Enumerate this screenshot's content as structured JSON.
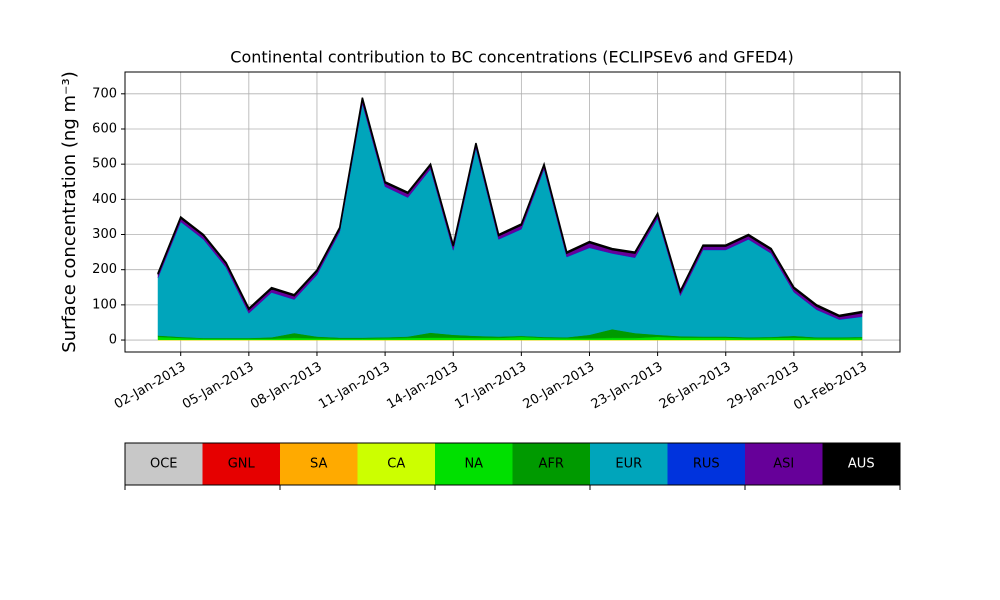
{
  "chart_data": {
    "type": "stacked_area",
    "title": "Continental contribution to BC concentrations (ECLIPSEv6 and GFED4)",
    "y_label": "Surface concentration (ng m⁻³)",
    "x": [
      "01-Jan-2013",
      "02-Jan-2013",
      "03-Jan-2013",
      "04-Jan-2013",
      "05-Jan-2013",
      "06-Jan-2013",
      "07-Jan-2013",
      "08-Jan-2013",
      "09-Jan-2013",
      "10-Jan-2013",
      "11-Jan-2013",
      "12-Jan-2013",
      "13-Jan-2013",
      "14-Jan-2013",
      "15-Jan-2013",
      "16-Jan-2013",
      "17-Jan-2013",
      "18-Jan-2013",
      "19-Jan-2013",
      "20-Jan-2013",
      "21-Jan-2013",
      "22-Jan-2013",
      "23-Jan-2013",
      "24-Jan-2013",
      "25-Jan-2013",
      "26-Jan-2013",
      "27-Jan-2013",
      "28-Jan-2013",
      "29-Jan-2013",
      "30-Jan-2013",
      "31-Jan-2013",
      "01-Feb-2013"
    ],
    "xticks": [
      "02-Jan-2013",
      "05-Jan-2013",
      "08-Jan-2013",
      "11-Jan-2013",
      "14-Jan-2013",
      "17-Jan-2013",
      "20-Jan-2013",
      "23-Jan-2013",
      "26-Jan-2013",
      "29-Jan-2013",
      "01-Feb-2013"
    ],
    "ylim": [
      -34,
      762
    ],
    "yticks": [
      0,
      100,
      200,
      300,
      400,
      500,
      600,
      700
    ],
    "grid": true,
    "series": [
      {
        "name": "OCE",
        "color": "#c8c8c8",
        "values": [
          0,
          0,
          0,
          0,
          0,
          0,
          0,
          0,
          0,
          0,
          0,
          0,
          0,
          0,
          0,
          0,
          0,
          0,
          0,
          0,
          0,
          0,
          0,
          0,
          0,
          0,
          0,
          0,
          0,
          0,
          0,
          0
        ]
      },
      {
        "name": "GNL",
        "color": "#e60000",
        "values": [
          0,
          0,
          0,
          0,
          0,
          0,
          0,
          0,
          0,
          0,
          0,
          0,
          0,
          0,
          0,
          0,
          0,
          0,
          0,
          0,
          0,
          0,
          0,
          0,
          0,
          0,
          0,
          0,
          0,
          0,
          0,
          0
        ]
      },
      {
        "name": "SA",
        "color": "#ffaa00",
        "values": [
          0,
          0,
          0,
          0,
          0,
          0,
          0,
          0,
          0,
          0,
          0,
          0,
          0,
          0,
          0,
          0,
          0,
          0,
          0,
          0,
          0,
          0,
          0,
          0,
          0,
          0,
          0,
          0,
          0,
          0,
          0,
          0
        ]
      },
      {
        "name": "CA",
        "color": "#ccff00",
        "values": [
          1,
          1,
          1,
          1,
          1,
          1,
          1,
          1,
          1,
          1,
          1,
          1,
          1,
          1,
          1,
          1,
          1,
          1,
          1,
          1,
          1,
          1,
          1,
          1,
          1,
          1,
          1,
          1,
          1,
          1,
          1,
          1
        ]
      },
      {
        "name": "NA",
        "color": "#00e000",
        "values": [
          8,
          5,
          3,
          3,
          3,
          3,
          5,
          4,
          3,
          3,
          4,
          5,
          6,
          6,
          5,
          5,
          8,
          5,
          4,
          4,
          5,
          5,
          8,
          6,
          6,
          6,
          4,
          5,
          6,
          4,
          4,
          5
        ]
      },
      {
        "name": "AFR",
        "color": "#009a00",
        "values": [
          4,
          3,
          2,
          2,
          2,
          4,
          14,
          5,
          3,
          3,
          3,
          4,
          14,
          8,
          6,
          4,
          3,
          3,
          3,
          10,
          25,
          14,
          6,
          4,
          3,
          3,
          3,
          3,
          5,
          3,
          3,
          3
        ]
      },
      {
        "name": "EUR",
        "color": "#00a5bb",
        "values": [
          164,
          327,
          280,
          200,
          70,
          127,
          95,
          175,
          300,
          665,
          428,
          395,
          465,
          240,
          534,
          276,
          303,
          477,
          228,
          247,
          215,
          214,
          331,
          115,
          246,
          246,
          278,
          237,
          124,
          78,
          50,
          57
        ]
      },
      {
        "name": "RUS",
        "color": "#0033dd",
        "values": [
          1,
          1,
          1,
          1,
          1,
          1,
          1,
          1,
          1,
          1,
          1,
          1,
          1,
          1,
          1,
          1,
          1,
          1,
          1,
          1,
          1,
          1,
          1,
          1,
          1,
          1,
          1,
          1,
          1,
          1,
          1,
          1
        ]
      },
      {
        "name": "ASI",
        "color": "#660099",
        "values": [
          9,
          10,
          10,
          10,
          10,
          10,
          10,
          10,
          9,
          12,
          10,
          11,
          10,
          11,
          10,
          10,
          11,
          10,
          10,
          14,
          10,
          12,
          10,
          10,
          10,
          10,
          10,
          10,
          10,
          10,
          8,
          11
        ]
      },
      {
        "name": "AUS",
        "color": "#000000",
        "values": [
          3,
          3,
          3,
          3,
          3,
          3,
          3,
          3,
          3,
          4,
          3,
          3,
          3,
          3,
          3,
          3,
          3,
          3,
          3,
          3,
          3,
          3,
          3,
          3,
          3,
          3,
          3,
          3,
          3,
          3,
          3,
          3
        ]
      }
    ]
  }
}
